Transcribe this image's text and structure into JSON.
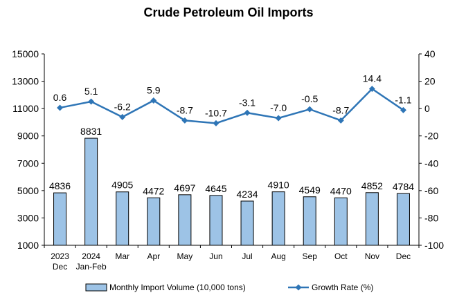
{
  "chart_data": {
    "type": "bar",
    "title": "Crude Petroleum Oil Imports",
    "categories": [
      [
        "2023",
        "Dec"
      ],
      [
        "2024",
        "Jan-Feb"
      ],
      [
        "Mar"
      ],
      [
        "Apr"
      ],
      [
        "May"
      ],
      [
        "Jun"
      ],
      [
        "Jul"
      ],
      [
        "Aug"
      ],
      [
        "Sep"
      ],
      [
        "Oct"
      ],
      [
        "Nov"
      ],
      [
        "Dec"
      ]
    ],
    "series": [
      {
        "name": "Monthly Import Volume (10,000 tons)",
        "type": "bar",
        "axis": "left",
        "values": [
          4836,
          8831,
          4905,
          4472,
          4697,
          4645,
          4234,
          4910,
          4549,
          4470,
          4852,
          4784
        ],
        "labels": [
          "4836",
          "8831",
          "4905",
          "4472",
          "4697",
          "4645",
          "4234",
          "4910",
          "4549",
          "4470",
          "4852",
          "4784"
        ],
        "color": "#9DC3E6",
        "edge_color": "#000000"
      },
      {
        "name": "Growth Rate (%)",
        "type": "line",
        "axis": "right",
        "values": [
          0.6,
          5.1,
          -6.2,
          5.9,
          -8.7,
          -10.7,
          -3.1,
          -7.0,
          -0.5,
          -8.7,
          14.4,
          -1.1
        ],
        "labels": [
          "0.6",
          "5.1",
          "-6.2",
          "5.9",
          "-8.7",
          "-10.7",
          "-3.1",
          "-7.0",
          "-0.5",
          "-8.7",
          "14.4",
          "-1.1"
        ],
        "color": "#2E75B6",
        "marker": "diamond"
      }
    ],
    "y_left": {
      "ylim": [
        1000,
        15000
      ],
      "ticks": [
        "1000",
        "3000",
        "5000",
        "7000",
        "9000",
        "11000",
        "13000",
        "15000"
      ]
    },
    "y_right": {
      "ylim": [
        -100,
        40
      ],
      "ticks": [
        "-100",
        "-80",
        "-60",
        "-40",
        "-20",
        "0",
        "20",
        "40"
      ]
    },
    "grid": false,
    "legend_position": "bottom"
  }
}
